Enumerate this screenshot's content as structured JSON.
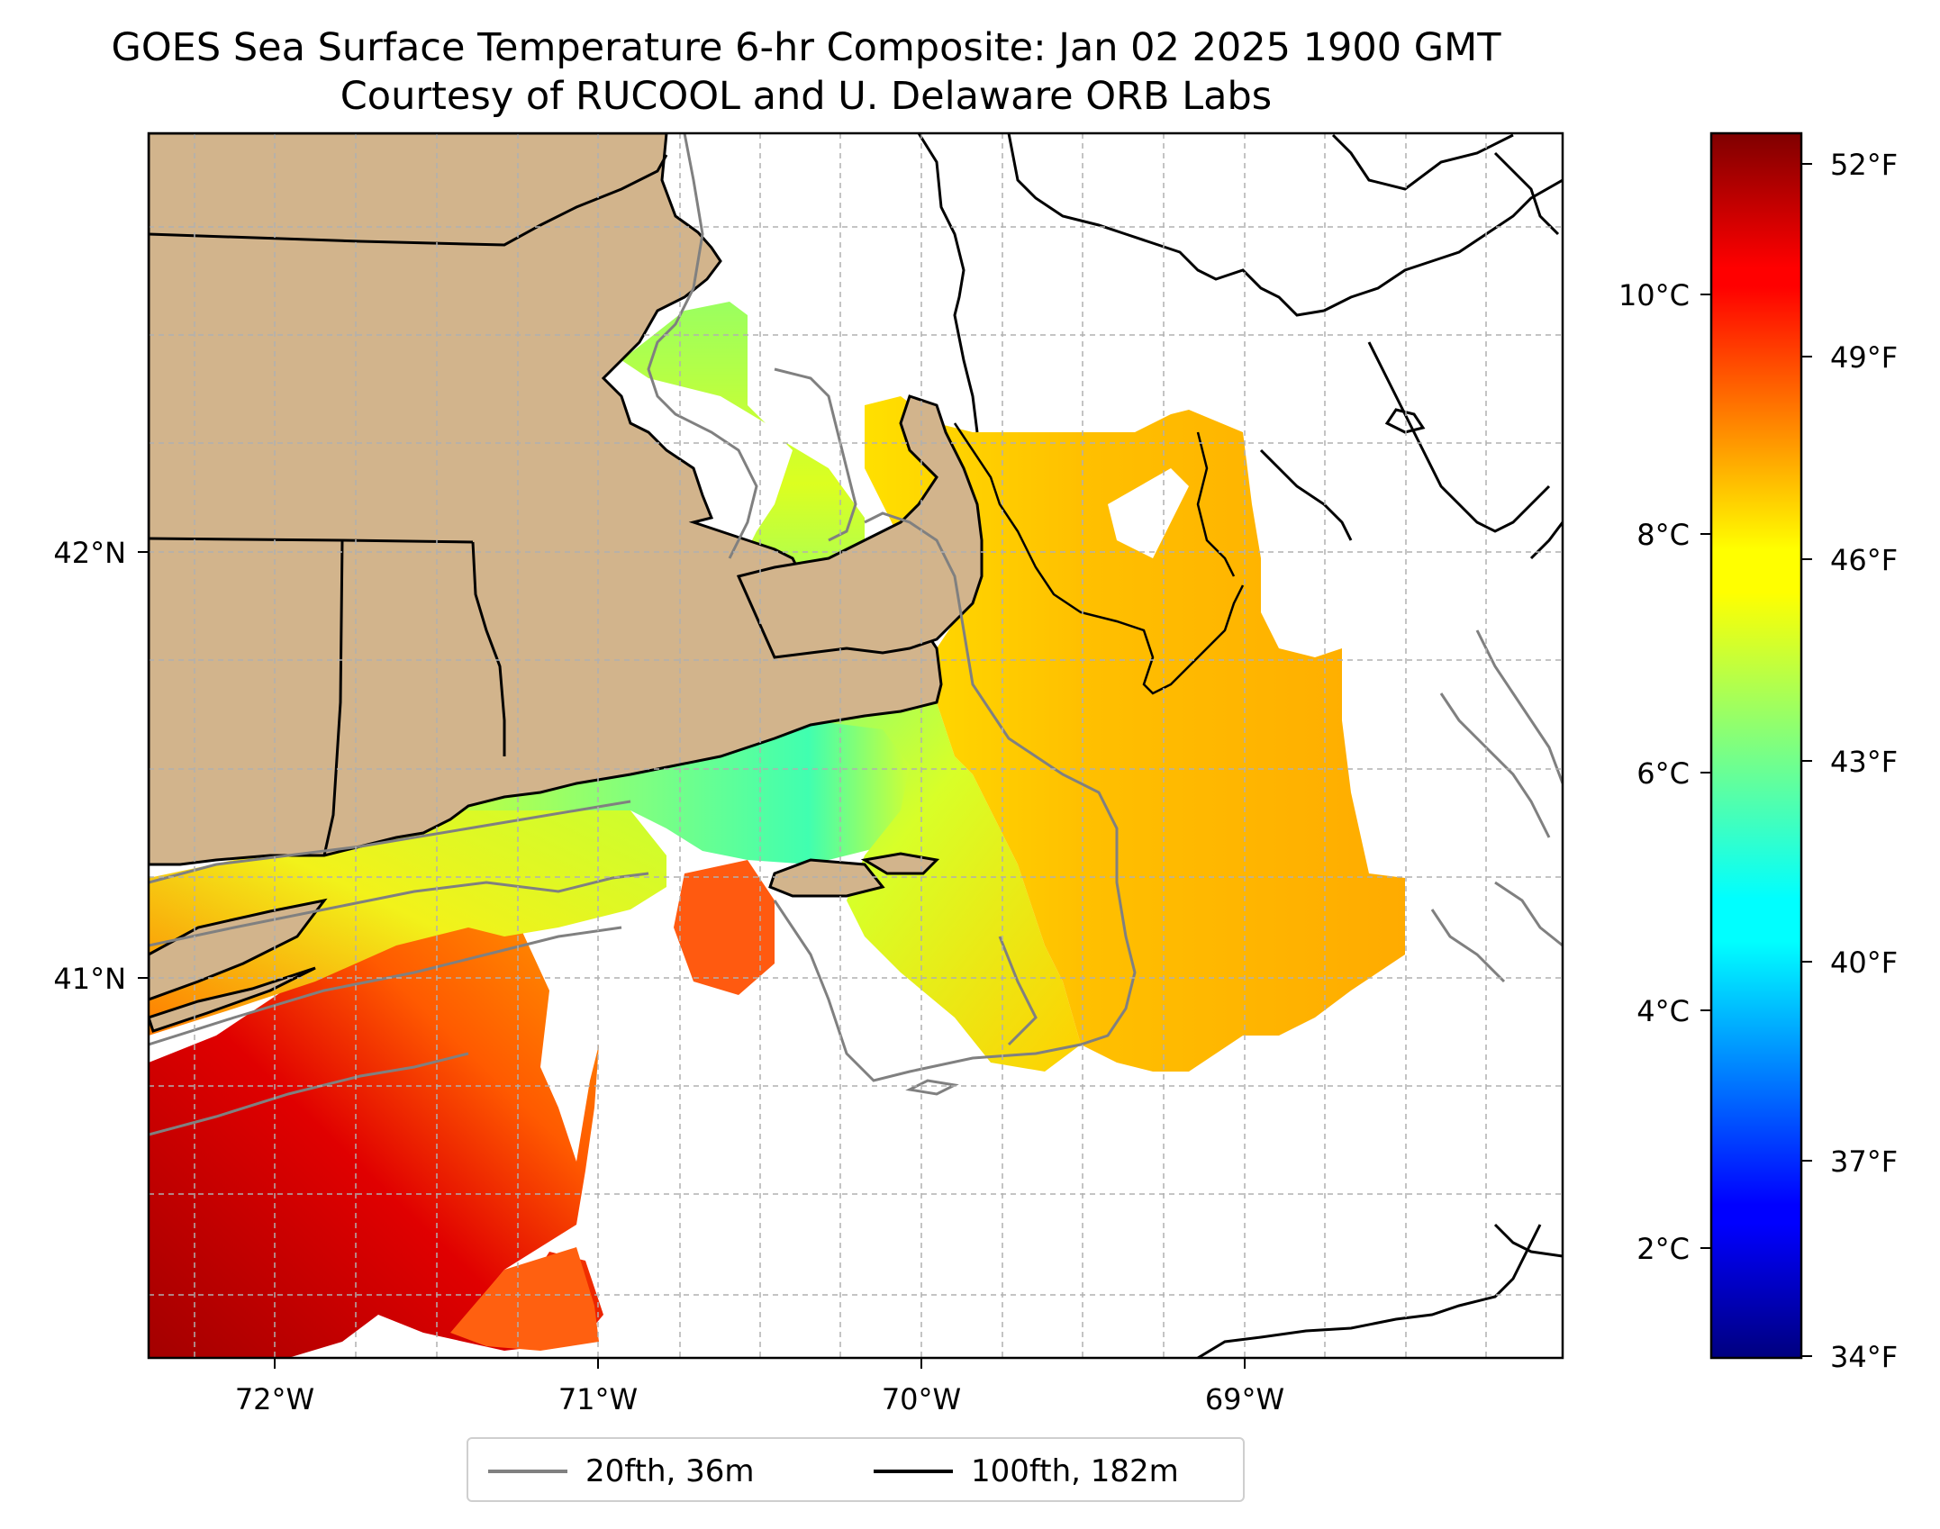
{
  "title": {
    "line1": "GOES Sea Surface Temperature 6-hr Composite: Jan 02 2025 1900 GMT",
    "line2": "Courtesy of RUCOOL and U. Delaware ORB Labs"
  },
  "map": {
    "lon_range": [
      -72.47,
      -68.1
    ],
    "lat_range": [
      40.1,
      42.97
    ],
    "lon_ticks": [
      {
        "value": -72,
        "label": "72°W"
      },
      {
        "value": -71,
        "label": "71°W"
      },
      {
        "value": -70,
        "label": "70°W"
      },
      {
        "value": -69,
        "label": "69°W"
      }
    ],
    "lat_ticks": [
      {
        "value": 42,
        "label": "42°N"
      },
      {
        "value": 41,
        "label": "41°N"
      }
    ],
    "gridlines": true,
    "land_color": "#d2b48c",
    "isobath_20_color": "#808080",
    "isobath_100_color": "#000000"
  },
  "colorbar": {
    "colormap": "jet",
    "range_f": [
      34,
      53
    ],
    "fahrenheit_ticks": [
      {
        "value": 52,
        "label": "52°F"
      },
      {
        "value": 49,
        "label": "49°F"
      },
      {
        "value": 46,
        "label": "46°F"
      },
      {
        "value": 43,
        "label": "43°F"
      },
      {
        "value": 40,
        "label": "40°F"
      },
      {
        "value": 37,
        "label": "37°F"
      },
      {
        "value": 34,
        "label": "34°F"
      }
    ],
    "celsius_ticks": [
      {
        "value": 10,
        "label": "10°C"
      },
      {
        "value": 8,
        "label": "8°C"
      },
      {
        "value": 6,
        "label": "6°C"
      },
      {
        "value": 4,
        "label": "4°C"
      },
      {
        "value": 2,
        "label": "2°C"
      }
    ]
  },
  "legend": {
    "items": [
      {
        "label": "20fth, 36m",
        "color": "#808080"
      },
      {
        "label": "100fth, 182m",
        "color": "#000000"
      }
    ]
  }
}
